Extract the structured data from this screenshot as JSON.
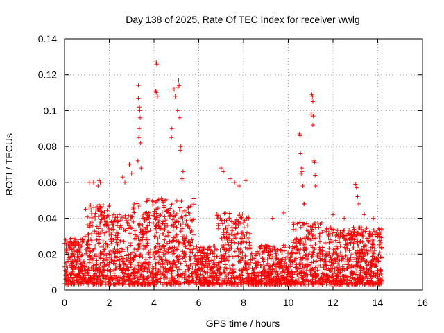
{
  "chart_data": {
    "type": "scatter",
    "title": "Day 138 of 2025, Rate Of TEC Index for receiver wwlg",
    "xlabel": "GPS time / hours",
    "ylabel": "ROTI / TECUs",
    "xlim": [
      0,
      16
    ],
    "ylim": [
      0,
      0.14
    ],
    "xticks": [
      0,
      2,
      4,
      6,
      8,
      10,
      12,
      14,
      16
    ],
    "xtick_labels": [
      "0",
      "2",
      "4",
      "6",
      "8",
      "10",
      "12",
      "14",
      "16"
    ],
    "yticks": [
      0,
      0.02,
      0.04,
      0.06,
      0.08,
      0.1,
      0.12,
      0.14
    ],
    "ytick_labels": [
      "0",
      "0.02",
      "0.04",
      "0.06",
      "0.08",
      "0.1",
      "0.12",
      "0.14"
    ],
    "grid": true,
    "marker": "+",
    "color": "#ff0000",
    "x_data_range": [
      0,
      14.2
    ],
    "series": [
      {
        "name": "ROTI",
        "points": [
          [
            3.3,
            0.114
          ],
          [
            3.35,
            0.102
          ],
          [
            3.38,
            0.096
          ],
          [
            3.32,
            0.085
          ],
          [
            3.36,
            0.1
          ],
          [
            3.3,
            0.107
          ],
          [
            3.34,
            0.09
          ],
          [
            3.4,
            0.082
          ],
          [
            3.28,
            0.072
          ],
          [
            3.42,
            0.068
          ],
          [
            4.1,
            0.127
          ],
          [
            4.12,
            0.126
          ],
          [
            4.08,
            0.111
          ],
          [
            4.15,
            0.108
          ],
          [
            4.1,
            0.11
          ],
          [
            4.9,
            0.112
          ],
          [
            4.95,
            0.108
          ],
          [
            4.85,
            0.112
          ],
          [
            5.1,
            0.117
          ],
          [
            5.12,
            0.114
          ],
          [
            5.08,
            0.113
          ],
          [
            5.05,
            0.1
          ],
          [
            5.15,
            0.096
          ],
          [
            5.2,
            0.08
          ],
          [
            5.18,
            0.078
          ],
          [
            4.8,
            0.09
          ],
          [
            4.78,
            0.085
          ],
          [
            5.3,
            0.066
          ],
          [
            5.25,
            0.062
          ],
          [
            10.5,
            0.087
          ],
          [
            10.52,
            0.086
          ],
          [
            10.55,
            0.076
          ],
          [
            10.6,
            0.068
          ],
          [
            10.62,
            0.066
          ],
          [
            10.58,
            0.065
          ],
          [
            10.65,
            0.058
          ],
          [
            10.7,
            0.048
          ],
          [
            10.72,
            0.048
          ],
          [
            11.05,
            0.109
          ],
          [
            11.08,
            0.108
          ],
          [
            11.1,
            0.105
          ],
          [
            11.02,
            0.098
          ],
          [
            11.12,
            0.097
          ],
          [
            11.1,
            0.092
          ],
          [
            11.15,
            0.072
          ],
          [
            11.18,
            0.071
          ],
          [
            11.2,
            0.064
          ],
          [
            11.22,
            0.058
          ],
          [
            13.0,
            0.059
          ],
          [
            13.05,
            0.057
          ],
          [
            13.1,
            0.052
          ],
          [
            13.15,
            0.048
          ],
          [
            1.1,
            0.06
          ],
          [
            1.3,
            0.06
          ],
          [
            1.55,
            0.061
          ],
          [
            1.6,
            0.06
          ],
          [
            1.5,
            0.058
          ],
          [
            2.9,
            0.07
          ],
          [
            3.0,
            0.065
          ],
          [
            2.6,
            0.063
          ],
          [
            2.7,
            0.06
          ],
          [
            7.0,
            0.068
          ],
          [
            7.1,
            0.066
          ],
          [
            7.4,
            0.062
          ],
          [
            7.8,
            0.058
          ],
          [
            8.1,
            0.061
          ],
          [
            7.6,
            0.06
          ],
          [
            9.3,
            0.04
          ],
          [
            9.8,
            0.043
          ],
          [
            12.0,
            0.042
          ],
          [
            12.5,
            0.04
          ],
          [
            13.4,
            0.042
          ],
          [
            13.8,
            0.04
          ],
          [
            14.1,
            0.03
          ]
        ]
      }
    ]
  }
}
